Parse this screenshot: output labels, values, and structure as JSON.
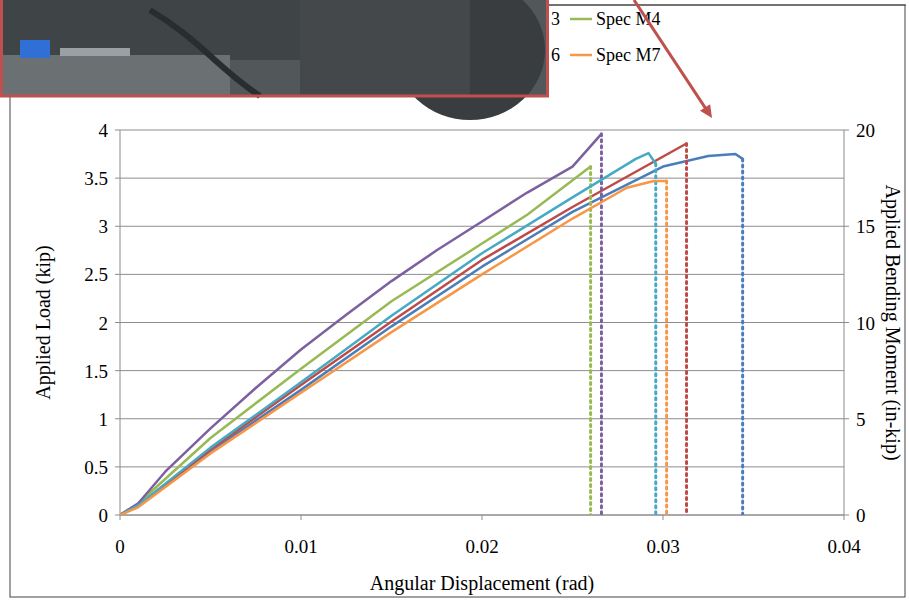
{
  "chart_data": {
    "type": "line",
    "x_label": "Angular Displacement (rad)",
    "y_label": "Applied Load (kip)",
    "y2_label": "Applied Bending Moment (in-kip)",
    "xlim": [
      0,
      0.04
    ],
    "xticks": [
      0,
      0.01,
      0.02,
      0.03,
      0.04
    ],
    "ylim": [
      0,
      4
    ],
    "yticks": [
      0,
      0.5,
      1,
      1.5,
      2,
      2.5,
      3,
      3.5,
      4
    ],
    "y2lim": [
      0,
      20
    ],
    "y2ticks": [
      0,
      5,
      10,
      15,
      20
    ],
    "grid": true,
    "legend": "top-right",
    "series": [
      {
        "color": "#4a7ebb",
        "x": [
          0,
          0.001,
          0.005,
          0.01,
          0.015,
          0.02,
          0.025,
          0.03,
          0.0325,
          0.034,
          0.0344
        ],
        "values": [
          0,
          0.1,
          0.66,
          1.3,
          1.96,
          2.58,
          3.15,
          3.62,
          3.73,
          3.75,
          3.7
        ]
      },
      {
        "name": "3",
        "color": "#be4b48",
        "x": [
          0,
          0.001,
          0.005,
          0.01,
          0.015,
          0.02,
          0.025,
          0.0313
        ],
        "values": [
          0,
          0.1,
          0.68,
          1.35,
          2.01,
          2.65,
          3.2,
          3.86
        ]
      },
      {
        "name": "Spec M4",
        "color": "#98b954",
        "x": [
          0,
          0.001,
          0.005,
          0.01,
          0.015,
          0.02,
          0.0225,
          0.026
        ],
        "values": [
          0,
          0.12,
          0.8,
          1.52,
          2.22,
          2.82,
          3.12,
          3.62
        ]
      },
      {
        "color": "#7d60a0",
        "x": [
          0,
          0.001,
          0.0025,
          0.005,
          0.0075,
          0.01,
          0.0125,
          0.015,
          0.0175,
          0.02,
          0.0225,
          0.025,
          0.0266
        ],
        "values": [
          0,
          0.12,
          0.45,
          0.9,
          1.32,
          1.72,
          2.08,
          2.43,
          2.75,
          3.05,
          3.35,
          3.62,
          3.96
        ]
      },
      {
        "name": "6",
        "color": "#46aac5",
        "x": [
          0,
          0.001,
          0.005,
          0.01,
          0.015,
          0.02,
          0.025,
          0.0285,
          0.0292,
          0.0296
        ],
        "values": [
          0,
          0.1,
          0.7,
          1.38,
          2.07,
          2.72,
          3.3,
          3.7,
          3.76,
          3.65
        ]
      },
      {
        "name": "Spec M7",
        "color": "#f79646",
        "x": [
          0,
          0.001,
          0.005,
          0.01,
          0.015,
          0.02,
          0.025,
          0.028,
          0.0295,
          0.0302
        ],
        "values": [
          0,
          0.08,
          0.64,
          1.27,
          1.9,
          2.5,
          3.08,
          3.4,
          3.47,
          3.47
        ]
      }
    ]
  }
}
